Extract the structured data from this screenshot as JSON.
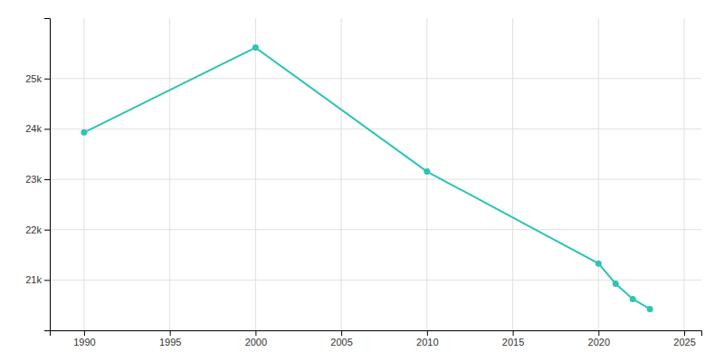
{
  "chart_data": {
    "type": "line",
    "x": [
      1990,
      2000,
      2010,
      2020,
      2021,
      2022,
      2023
    ],
    "values": [
      23930,
      25614,
      23153,
      21327,
      20926,
      20622,
      20424
    ],
    "color": "#2ec4b6",
    "marker": "circle",
    "xlim": [
      1988,
      2026
    ],
    "ylim": [
      20000,
      26200
    ],
    "xticks": [
      1990,
      1995,
      2000,
      2005,
      2010,
      2015,
      2020,
      2025
    ],
    "yticks": [
      {
        "value": 21000,
        "label": "21k"
      },
      {
        "value": 22000,
        "label": "22k"
      },
      {
        "value": 23000,
        "label": "23k"
      },
      {
        "value": 24000,
        "label": "24k"
      },
      {
        "value": 25000,
        "label": "25k"
      }
    ],
    "grid": true
  }
}
